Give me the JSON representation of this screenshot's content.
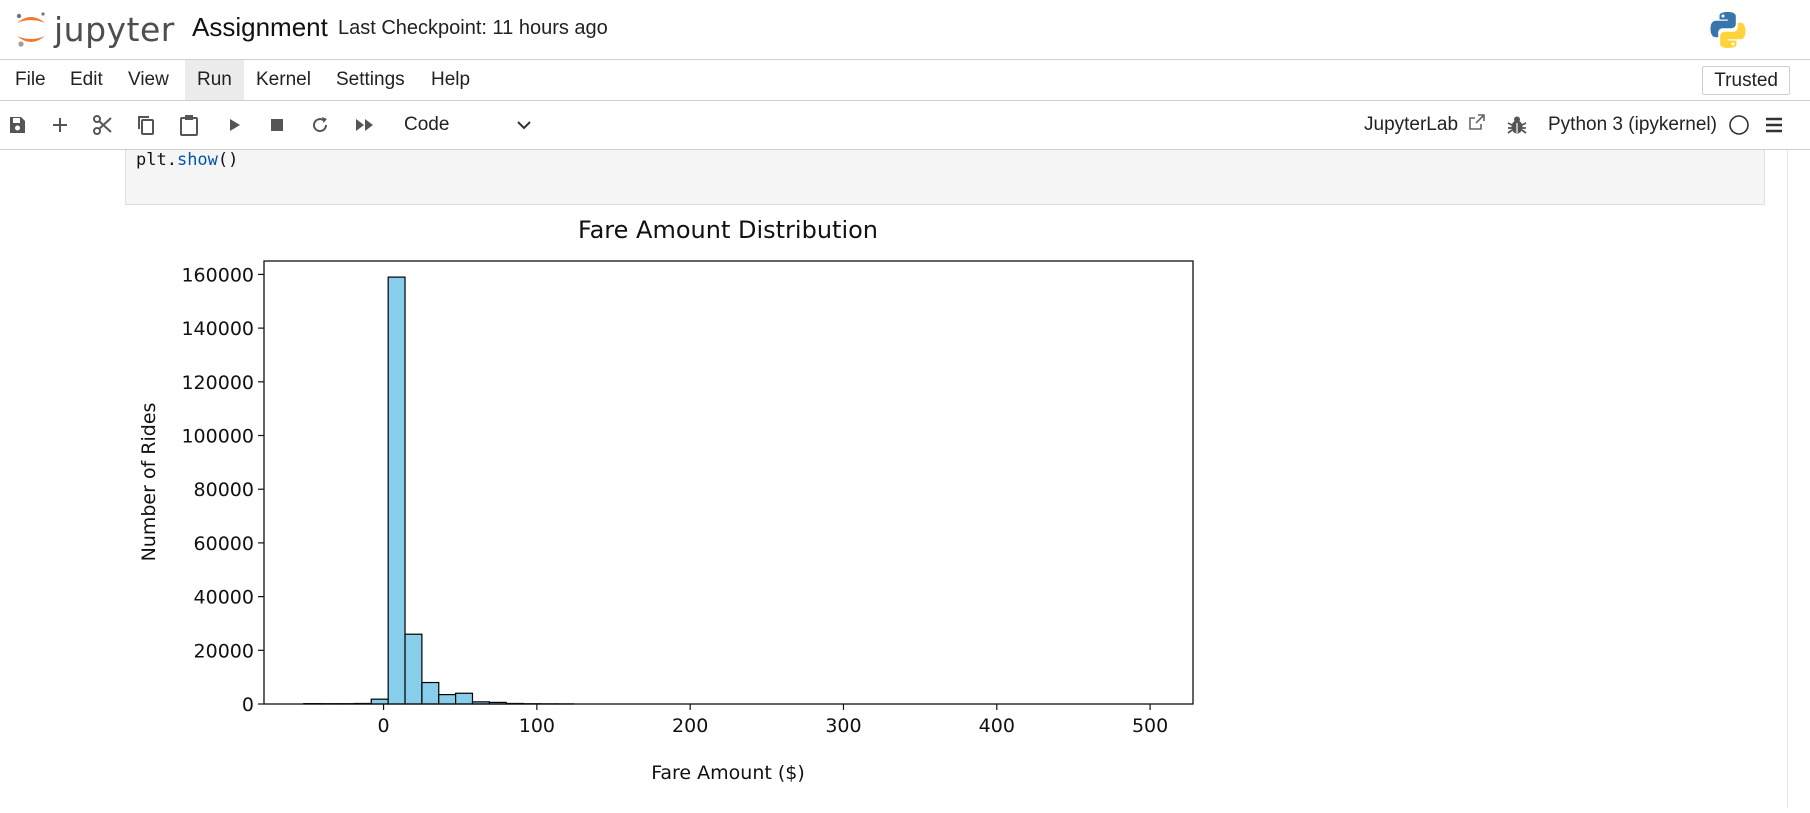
{
  "header": {
    "logo_text": "jupyter",
    "notebook_title": "Assignment",
    "checkpoint": "Last Checkpoint: 11 hours ago"
  },
  "menu": [
    "File",
    "Edit",
    "View",
    "Run",
    "Kernel",
    "Settings",
    "Help"
  ],
  "trusted_label": "Trusted",
  "toolbar": {
    "cell_type": "Code",
    "jupyterlab_label": "JupyterLab",
    "kernel_label": "Python 3 (ipykernel)",
    "icons": [
      "save-icon",
      "add-cell-icon",
      "cut-icon",
      "copy-icon",
      "paste-icon",
      "run-icon",
      "stop-icon",
      "restart-icon",
      "fast-forward-icon"
    ]
  },
  "code": {
    "obj": "plt.",
    "fn": "show",
    "rest": "()"
  },
  "colors": {
    "bar_fill": "#87ceeb",
    "bar_edge": "#000000",
    "jupyter_orange": "#f37726"
  },
  "chart_data": {
    "type": "bar",
    "title": "Fare Amount Distribution",
    "xlabel": "Fare Amount ($)",
    "ylabel": "Number of Rides",
    "xlim": [
      -78,
      528
    ],
    "ylim": [
      0,
      165000
    ],
    "xticks": [
      0,
      100,
      200,
      300,
      400,
      500
    ],
    "yticks": [
      0,
      20000,
      40000,
      60000,
      80000,
      100000,
      120000,
      140000,
      160000
    ],
    "bin_width": 11,
    "bins": [
      {
        "x0": -52,
        "value": 150
      },
      {
        "x0": -41,
        "value": 120
      },
      {
        "x0": -30,
        "value": 120
      },
      {
        "x0": -19,
        "value": 200
      },
      {
        "x0": -8,
        "value": 1800
      },
      {
        "x0": 3,
        "value": 159000
      },
      {
        "x0": 14,
        "value": 26000
      },
      {
        "x0": 25,
        "value": 8000
      },
      {
        "x0": 36,
        "value": 3500
      },
      {
        "x0": 47,
        "value": 4000
      },
      {
        "x0": 58,
        "value": 800
      },
      {
        "x0": 69,
        "value": 600
      },
      {
        "x0": 80,
        "value": 200
      },
      {
        "x0": 91,
        "value": 100
      },
      {
        "x0": 102,
        "value": 60
      },
      {
        "x0": 113,
        "value": 40
      }
    ]
  }
}
